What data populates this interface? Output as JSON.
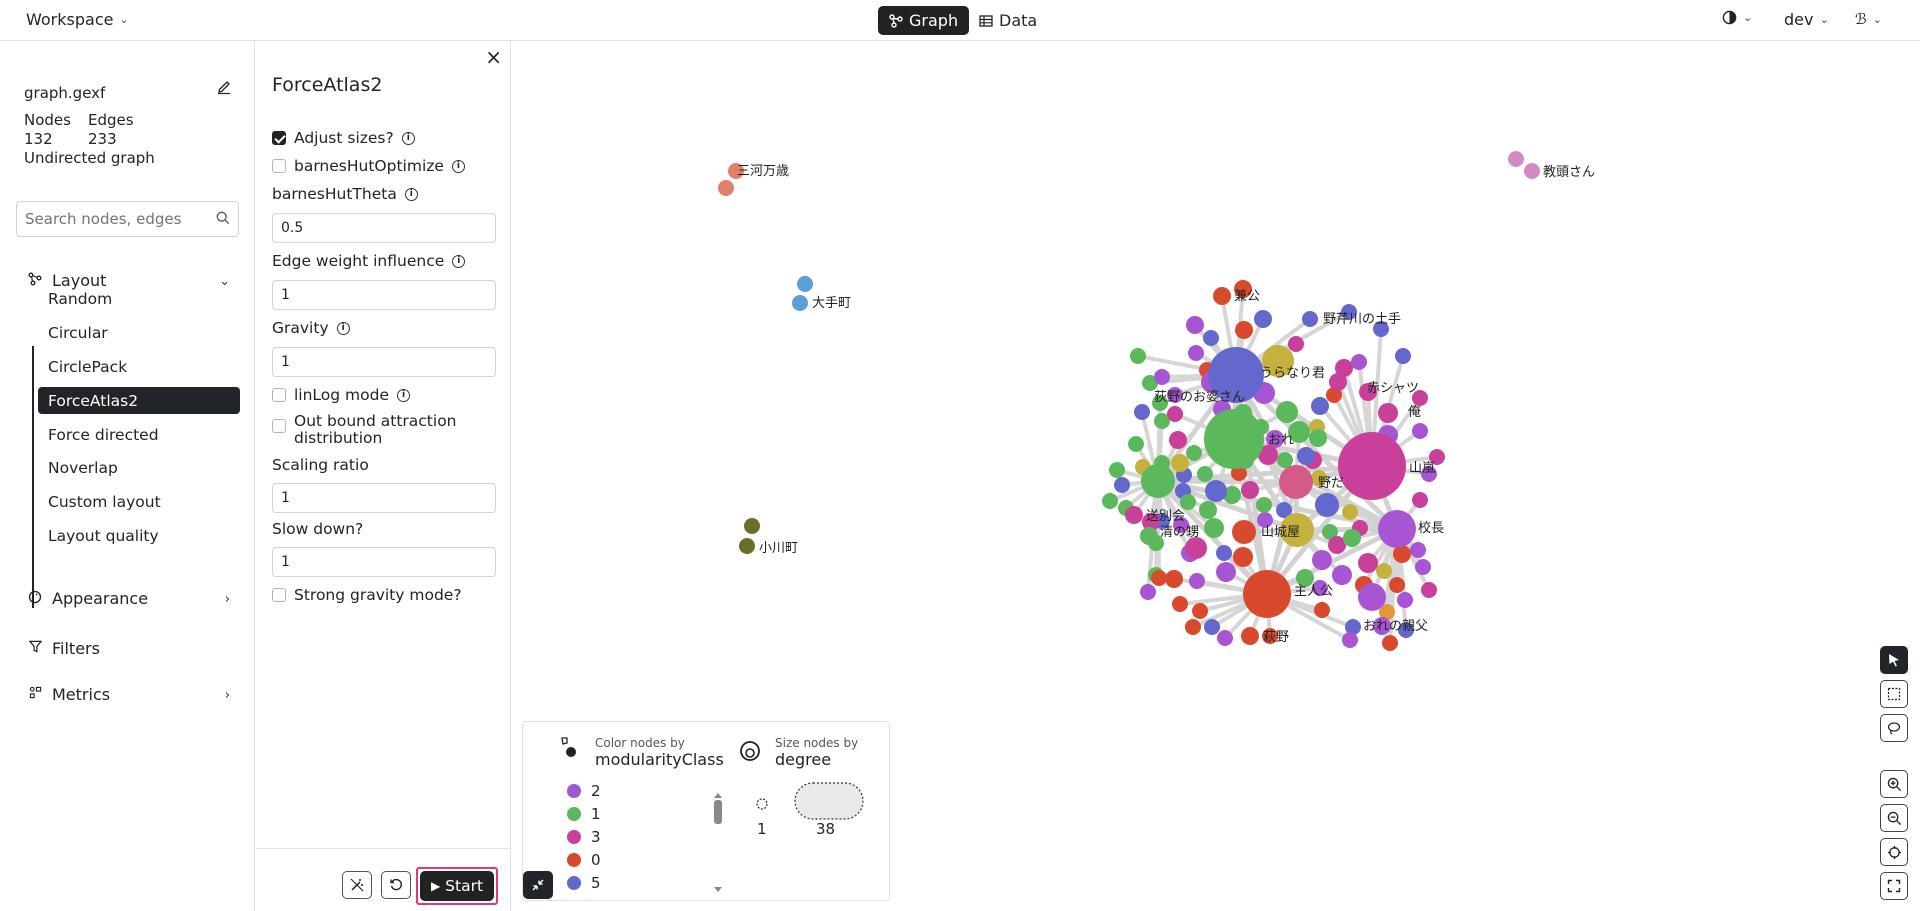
{
  "header": {
    "workspace_label": "Workspace",
    "tabs": [
      {
        "label": "Graph",
        "active": true
      },
      {
        "label": "Data",
        "active": false
      }
    ],
    "user_label": "dev"
  },
  "sidebar": {
    "file_name": "graph.gexf",
    "nodes_label": "Nodes",
    "edges_label": "Edges",
    "nodes_count": "132",
    "edges_count": "233",
    "graph_type": "Undirected graph",
    "search_placeholder": "Search nodes, edges",
    "sections": {
      "layout": "Layout",
      "appearance": "Appearance",
      "filters": "Filters",
      "metrics": "Metrics"
    },
    "layout_items": [
      {
        "label": "Random",
        "active": false
      },
      {
        "label": "Circular",
        "active": false
      },
      {
        "label": "CirclePack",
        "active": false
      },
      {
        "label": "ForceAtlas2",
        "active": true
      },
      {
        "label": "Force directed",
        "active": false
      },
      {
        "label": "Noverlap",
        "active": false
      },
      {
        "label": "Custom layout",
        "active": false
      },
      {
        "label": "Layout quality",
        "active": false
      }
    ]
  },
  "panel": {
    "title": "ForceAtlas2",
    "adjust_sizes": {
      "label": "Adjust sizes?",
      "checked": true
    },
    "barnes_hut_optimize": {
      "label": "barnesHutOptimize",
      "checked": false
    },
    "barnes_hut_theta": {
      "label": "barnesHutTheta",
      "value": "0.5"
    },
    "edge_weight_influence": {
      "label": "Edge weight influence",
      "value": "1"
    },
    "gravity": {
      "label": "Gravity",
      "value": "1"
    },
    "linlog_mode": {
      "label": "linLog mode",
      "checked": false
    },
    "outbound_attraction": {
      "label_line1": "Out bound attraction",
      "label_line2": "distribution",
      "checked": false
    },
    "scaling_ratio": {
      "label": "Scaling ratio",
      "value": "1"
    },
    "slow_down": {
      "label": "Slow down?",
      "value": "1"
    },
    "strong_gravity": {
      "label": "Strong gravity mode?",
      "checked": false
    },
    "start_label": "Start"
  },
  "legend": {
    "color_sub": "Color nodes by",
    "color_main": "modularityClass",
    "size_sub": "Size nodes by",
    "size_main": "degree",
    "classes": [
      {
        "label": "2",
        "color": "#9b59d0"
      },
      {
        "label": "1",
        "color": "#5cb85c"
      },
      {
        "label": "3",
        "color": "#c9409a"
      },
      {
        "label": "0",
        "color": "#d9492e"
      },
      {
        "label": "5",
        "color": "#6468cc"
      }
    ],
    "size_min": "1",
    "size_max": "38"
  },
  "graph": {
    "labels": [
      "三河万歳",
      "教頭さん",
      "大手町",
      "小川町",
      "兼公",
      "野芹川の土手",
      "うらなり君",
      "赤シャツ",
      "荻野のお婆さん",
      "俺",
      "おれ",
      "山嵐",
      "野だ",
      "送別会",
      "清の甥",
      "山城屋",
      "校長",
      "主人公",
      "おれの親父",
      "萩野"
    ],
    "colors": {
      "c2": "#a855d4",
      "c1": "#5cb85c",
      "c3": "#c9409a",
      "c0": "#d9492e",
      "c5": "#6468cc",
      "c4": "#c4b23c",
      "c6": "#e0806a",
      "c7": "#5a9fd8",
      "c8": "#6b6e2a",
      "c9": "#d58ac4",
      "c10": "#e3963a",
      "c11": "#d45a8a"
    }
  }
}
